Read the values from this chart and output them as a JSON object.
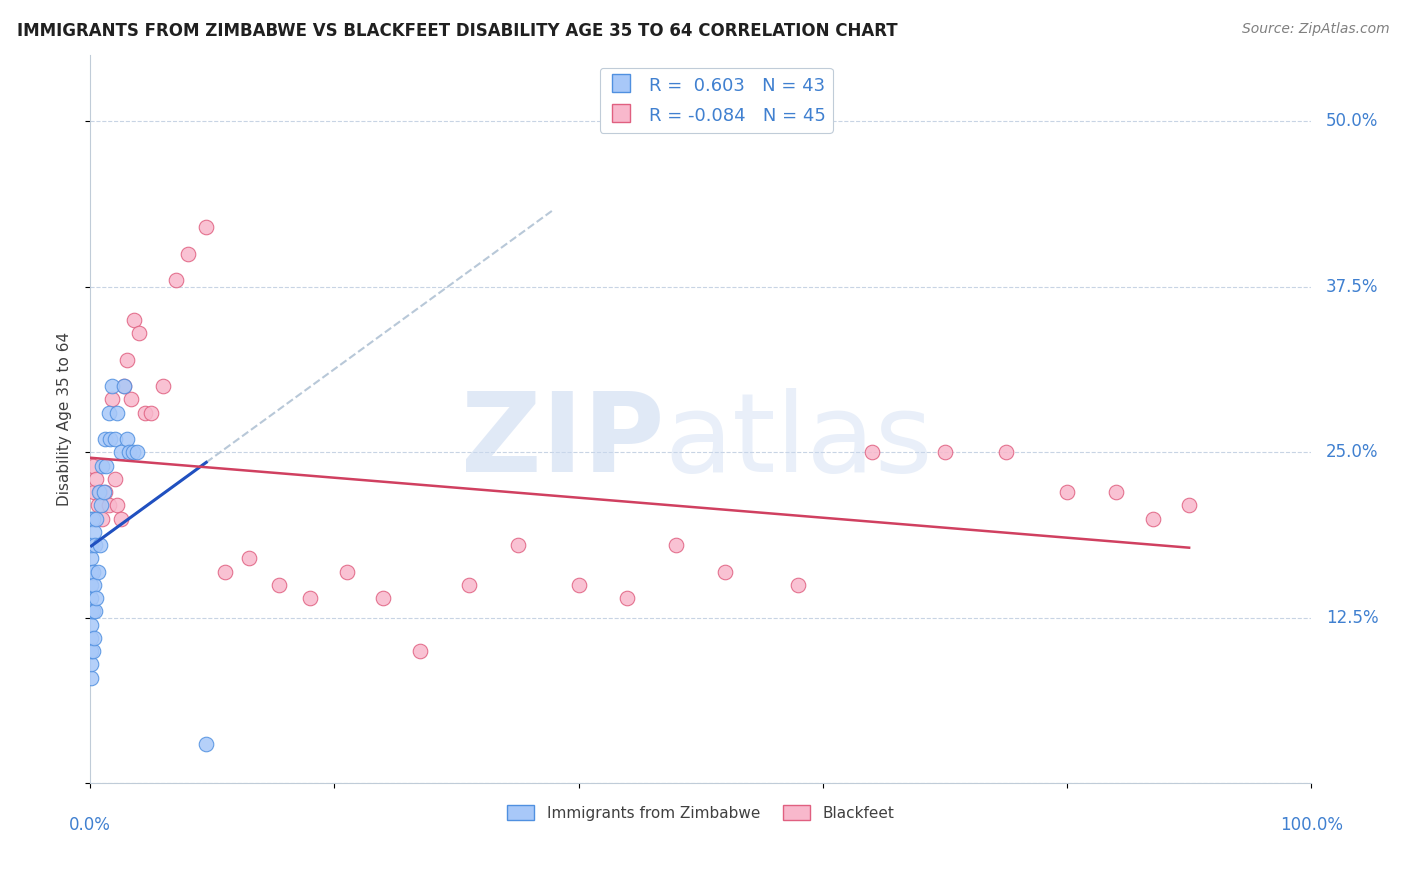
{
  "title": "IMMIGRANTS FROM ZIMBABWE VS BLACKFEET DISABILITY AGE 35 TO 64 CORRELATION CHART",
  "source": "Source: ZipAtlas.com",
  "ylabel": "Disability Age 35 to 64",
  "xlim": [
    0.0,
    1.0
  ],
  "ylim": [
    0.0,
    0.55
  ],
  "xticks": [
    0.0,
    0.2,
    0.4,
    0.6,
    0.8,
    1.0
  ],
  "yticks": [
    0.0,
    0.125,
    0.25,
    0.375,
    0.5
  ],
  "yticklabels": [
    "",
    "12.5%",
    "25.0%",
    "37.5%",
    "50.0%"
  ],
  "legend_labels": [
    "Immigrants from Zimbabwe",
    "Blackfeet"
  ],
  "blue_fill": "#a8c8f8",
  "blue_edge": "#5090e0",
  "pink_fill": "#f8b8cc",
  "pink_edge": "#e06080",
  "blue_line_color": "#2050c0",
  "pink_line_color": "#d04060",
  "dashed_color": "#b8c8d8",
  "tick_label_color": "#4080d0",
  "title_color": "#202020",
  "ylabel_color": "#404040",
  "source_color": "#808080",
  "R_blue": 0.603,
  "N_blue": 43,
  "R_pink": -0.084,
  "N_pink": 45,
  "blue_scatter_x": [
    0.001,
    0.001,
    0.001,
    0.001,
    0.001,
    0.001,
    0.001,
    0.001,
    0.001,
    0.001,
    0.001,
    0.001,
    0.002,
    0.002,
    0.002,
    0.002,
    0.003,
    0.003,
    0.003,
    0.004,
    0.004,
    0.005,
    0.005,
    0.006,
    0.007,
    0.008,
    0.009,
    0.01,
    0.011,
    0.012,
    0.013,
    0.015,
    0.016,
    0.018,
    0.02,
    0.022,
    0.025,
    0.028,
    0.03,
    0.032,
    0.035,
    0.038,
    0.095
  ],
  "blue_scatter_y": [
    0.08,
    0.09,
    0.1,
    0.11,
    0.12,
    0.13,
    0.14,
    0.15,
    0.16,
    0.17,
    0.18,
    0.2,
    0.1,
    0.13,
    0.16,
    0.2,
    0.11,
    0.15,
    0.19,
    0.13,
    0.18,
    0.14,
    0.2,
    0.16,
    0.22,
    0.18,
    0.21,
    0.24,
    0.22,
    0.26,
    0.24,
    0.28,
    0.26,
    0.3,
    0.26,
    0.28,
    0.25,
    0.3,
    0.26,
    0.25,
    0.25,
    0.25,
    0.03
  ],
  "pink_scatter_x": [
    0.002,
    0.003,
    0.004,
    0.005,
    0.006,
    0.008,
    0.01,
    0.012,
    0.015,
    0.018,
    0.02,
    0.022,
    0.025,
    0.028,
    0.03,
    0.033,
    0.036,
    0.04,
    0.045,
    0.05,
    0.06,
    0.07,
    0.08,
    0.095,
    0.11,
    0.13,
    0.155,
    0.18,
    0.21,
    0.24,
    0.27,
    0.31,
    0.35,
    0.4,
    0.44,
    0.48,
    0.52,
    0.58,
    0.64,
    0.7,
    0.75,
    0.8,
    0.84,
    0.87,
    0.9
  ],
  "pink_scatter_y": [
    0.24,
    0.22,
    0.2,
    0.23,
    0.21,
    0.22,
    0.2,
    0.22,
    0.21,
    0.29,
    0.23,
    0.21,
    0.2,
    0.3,
    0.32,
    0.29,
    0.35,
    0.34,
    0.28,
    0.28,
    0.3,
    0.38,
    0.4,
    0.42,
    0.16,
    0.17,
    0.15,
    0.14,
    0.16,
    0.14,
    0.1,
    0.15,
    0.18,
    0.15,
    0.14,
    0.18,
    0.16,
    0.15,
    0.25,
    0.25,
    0.25,
    0.22,
    0.22,
    0.2,
    0.21
  ]
}
